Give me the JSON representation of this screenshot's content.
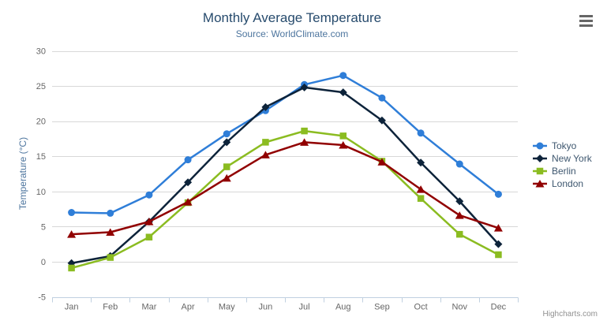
{
  "chart": {
    "title": "Monthly Average Temperature",
    "subtitle": "Source: WorldClimate.com",
    "credit": "Highcharts.com"
  },
  "colors": {
    "title": "#274b6d",
    "subtitle": "#4d759e",
    "axis_title": "#4d759e",
    "axis_labels": "#666666",
    "grid_line": "#d8d8d8",
    "axis_line": "#c0d0e0",
    "legend_text": "#3e576f",
    "credit": "#909090",
    "menu_icon": "#666666"
  },
  "chart_data": {
    "type": "line",
    "title": "Monthly Average Temperature",
    "subtitle": "Source: WorldClimate.com",
    "categories": [
      "Jan",
      "Feb",
      "Mar",
      "Apr",
      "May",
      "Jun",
      "Jul",
      "Aug",
      "Sep",
      "Oct",
      "Nov",
      "Dec"
    ],
    "xlabel": "",
    "ylabel": "Temperature (°C)",
    "ylim": [
      -5,
      30
    ],
    "yticks": [
      -5,
      0,
      5,
      10,
      15,
      20,
      25,
      30
    ],
    "grid": true,
    "legend_position": "right",
    "series": [
      {
        "name": "Tokyo",
        "color": "#2f7ed8",
        "marker": "circle",
        "values": [
          7.0,
          6.9,
          9.5,
          14.5,
          18.2,
          21.5,
          25.2,
          26.5,
          23.3,
          18.3,
          13.9,
          9.6
        ]
      },
      {
        "name": "New York",
        "color": "#0d233a",
        "marker": "diamond",
        "values": [
          -0.2,
          0.8,
          5.7,
          11.3,
          17.0,
          22.0,
          24.8,
          24.1,
          20.1,
          14.1,
          8.6,
          2.5
        ]
      },
      {
        "name": "Berlin",
        "color": "#8bbc21",
        "marker": "square",
        "values": [
          -0.9,
          0.6,
          3.5,
          8.4,
          13.5,
          17.0,
          18.6,
          17.9,
          14.3,
          9.0,
          3.9,
          1.0
        ]
      },
      {
        "name": "London",
        "color": "#910000",
        "marker": "triangle",
        "values": [
          3.9,
          4.2,
          5.7,
          8.5,
          11.9,
          15.2,
          17.0,
          16.6,
          14.2,
          10.3,
          6.6,
          4.8
        ]
      }
    ]
  }
}
